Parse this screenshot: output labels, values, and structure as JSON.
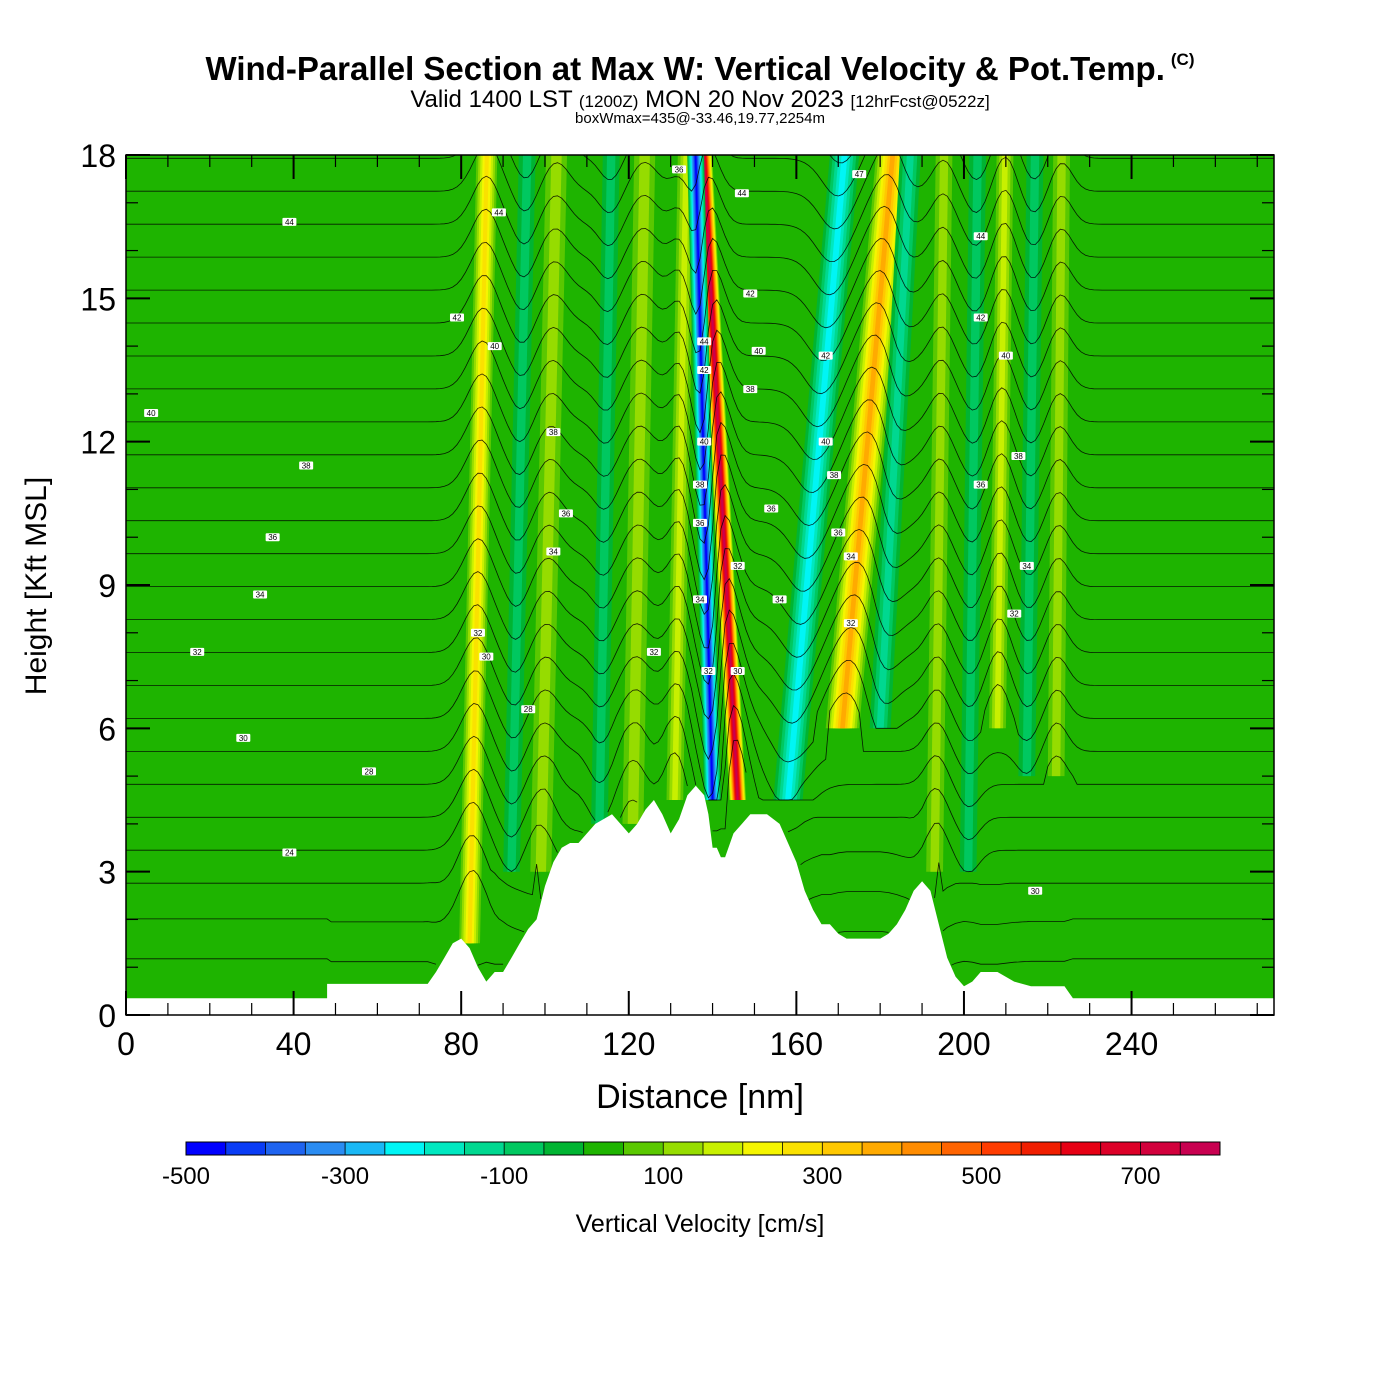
{
  "header": {
    "title": "Wind-Parallel Section at Max W: Vertical Velocity & Pot.Temp.",
    "copyright_mark": "(C)",
    "valid_prefix": "Valid 1400 LST",
    "valid_utc": "(1200Z)",
    "valid_date": "MON 20 Nov 2023",
    "forecast": "[12hrFcst@0522z]",
    "box_wmax": "boxWmax=435@-33.46,19.77,2254m"
  },
  "chart_data": {
    "type": "heatmap",
    "title": "Wind-Parallel Section at Max W: Vertical Velocity & Pot.Temp.",
    "xlabel": "Distance [nm]",
    "ylabel": "Height [Kft MSL]",
    "xlim": [
      0,
      274
    ],
    "ylim": [
      0,
      18
    ],
    "x_ticks": [
      0,
      40,
      80,
      120,
      160,
      200,
      240
    ],
    "y_ticks": [
      0,
      3,
      6,
      9,
      12,
      15,
      18
    ],
    "background_w": 25,
    "colorbar": {
      "label": "Vertical Velocity [cm/s]",
      "min": -500,
      "max": 800,
      "step": 50,
      "tick_labels": [
        -500,
        -300,
        -100,
        100,
        300,
        500,
        700
      ],
      "colors": [
        "#0000ff",
        "#0a3cf5",
        "#1f64f0",
        "#2a8cf2",
        "#1ab8f5",
        "#00f5f5",
        "#00e8c0",
        "#00d890",
        "#00c860",
        "#00b432",
        "#1eb400",
        "#5ac800",
        "#96dc00",
        "#c8f000",
        "#f5f500",
        "#fae100",
        "#ffc800",
        "#ffaa00",
        "#ff8c00",
        "#ff6400",
        "#ff3c00",
        "#f01e00",
        "#e60014",
        "#dc0028",
        "#d2003c",
        "#c80050"
      ]
    },
    "updrafts": [
      {
        "x_base": 82,
        "h_base": 1.5,
        "slope": 0.25,
        "w": 275,
        "width": 5
      },
      {
        "x_base": 99,
        "h_base": 3.0,
        "slope": 0.25,
        "w": 125,
        "width": 5
      },
      {
        "x_base": 121,
        "h_base": 4.0,
        "slope": 0.2,
        "w": 125,
        "width": 5
      },
      {
        "x_base": 131,
        "h_base": 4.5,
        "slope": 0.2,
        "w": 175,
        "width": 4
      },
      {
        "x_base": 146,
        "h_base": 4.5,
        "slope": -0.6,
        "w": 750,
        "width": 4
      },
      {
        "x_base": 171,
        "h_base": 6.0,
        "slope": 1.0,
        "w": 375,
        "width": 8
      },
      {
        "x_base": 193,
        "h_base": 3.0,
        "slope": 0.15,
        "w": 125,
        "width": 4
      },
      {
        "x_base": 208,
        "h_base": 6.0,
        "slope": 0.15,
        "w": 175,
        "width": 4
      },
      {
        "x_base": 222,
        "h_base": 5.0,
        "slope": 0.1,
        "w": 125,
        "width": 4
      }
    ],
    "downdrafts": [
      {
        "x_base": 92,
        "h_base": 3.0,
        "slope": 0.25,
        "w": -75,
        "width": 4
      },
      {
        "x_base": 113,
        "h_base": 4.0,
        "slope": 0.2,
        "w": -75,
        "width": 4
      },
      {
        "x_base": 140,
        "h_base": 4.5,
        "slope": -0.3,
        "w": -475,
        "width": 4
      },
      {
        "x_base": 158,
        "h_base": 4.5,
        "slope": 1.0,
        "w": -225,
        "width": 7
      },
      {
        "x_base": 180,
        "h_base": 6.0,
        "slope": 0.6,
        "w": -125,
        "width": 5
      },
      {
        "x_base": 201,
        "h_base": 3.0,
        "slope": 0.15,
        "w": -75,
        "width": 4
      },
      {
        "x_base": 215,
        "h_base": 5.0,
        "slope": 0.15,
        "w": -75,
        "width": 4
      }
    ],
    "terrain": {
      "x": [
        0,
        48,
        48,
        72,
        74,
        76,
        78,
        80,
        82,
        84,
        86,
        88,
        90,
        92,
        94,
        96,
        98,
        100,
        102,
        104,
        106,
        108,
        112,
        116,
        120,
        122,
        124,
        126,
        128,
        130,
        132,
        134,
        136,
        138,
        139,
        140,
        141,
        142,
        143,
        145,
        147,
        149,
        151,
        153,
        156,
        158,
        160,
        162,
        164,
        166,
        168,
        170,
        172,
        174,
        176,
        178,
        180,
        182,
        184,
        186,
        188,
        190,
        192,
        194,
        196,
        198,
        200,
        202,
        204,
        208,
        212,
        216,
        220,
        224,
        226,
        274
      ],
      "y": [
        0.35,
        0.35,
        0.65,
        0.65,
        0.9,
        1.2,
        1.5,
        1.6,
        1.4,
        1.0,
        0.7,
        0.9,
        0.9,
        1.2,
        1.5,
        1.8,
        2.0,
        2.7,
        3.2,
        3.5,
        3.6,
        3.6,
        4.0,
        4.2,
        3.8,
        4.0,
        4.3,
        4.5,
        4.2,
        3.8,
        4.1,
        4.6,
        4.8,
        4.6,
        4.2,
        3.5,
        3.5,
        3.3,
        3.3,
        3.8,
        4.0,
        4.2,
        4.2,
        4.2,
        4.0,
        3.6,
        3.2,
        2.6,
        2.2,
        1.9,
        1.9,
        1.7,
        1.6,
        1.6,
        1.6,
        1.6,
        1.6,
        1.7,
        1.9,
        2.2,
        2.6,
        2.8,
        2.6,
        1.9,
        1.2,
        0.8,
        0.6,
        0.7,
        0.9,
        0.9,
        0.7,
        0.6,
        0.6,
        0.6,
        0.35,
        0.35
      ]
    },
    "isentropes": {
      "theta_min": 24,
      "theta_max": 52,
      "interval": 1
    },
    "contour_labels": [
      {
        "x": 6,
        "h": 12.6,
        "text": "40"
      },
      {
        "x": 39,
        "h": 16.6,
        "text": "44"
      },
      {
        "x": 43,
        "h": 11.5,
        "text": "38"
      },
      {
        "x": 35,
        "h": 10.0,
        "text": "36"
      },
      {
        "x": 32,
        "h": 8.8,
        "text": "34"
      },
      {
        "x": 17,
        "h": 7.6,
        "text": "32"
      },
      {
        "x": 28,
        "h": 5.8,
        "text": "30"
      },
      {
        "x": 58,
        "h": 5.1,
        "text": "28"
      },
      {
        "x": 39,
        "h": 3.4,
        "text": "24"
      },
      {
        "x": 79,
        "h": 14.6,
        "text": "42"
      },
      {
        "x": 89,
        "h": 16.8,
        "text": "44"
      },
      {
        "x": 88,
        "h": 14.0,
        "text": "40"
      },
      {
        "x": 102,
        "h": 12.2,
        "text": "38"
      },
      {
        "x": 105,
        "h": 10.5,
        "text": "36"
      },
      {
        "x": 102,
        "h": 9.7,
        "text": "34"
      },
      {
        "x": 84,
        "h": 8.0,
        "text": "32"
      },
      {
        "x": 86,
        "h": 7.5,
        "text": "30"
      },
      {
        "x": 96,
        "h": 6.4,
        "text": "28"
      },
      {
        "x": 126,
        "h": 7.6,
        "text": "32"
      },
      {
        "x": 132,
        "h": 17.7,
        "text": "36"
      },
      {
        "x": 138,
        "h": 14.1,
        "text": "44"
      },
      {
        "x": 138,
        "h": 13.5,
        "text": "42"
      },
      {
        "x": 138,
        "h": 12.0,
        "text": "40"
      },
      {
        "x": 137,
        "h": 11.1,
        "text": "38"
      },
      {
        "x": 137,
        "h": 10.3,
        "text": "36"
      },
      {
        "x": 137,
        "h": 8.7,
        "text": "34"
      },
      {
        "x": 139,
        "h": 7.2,
        "text": "32"
      },
      {
        "x": 147,
        "h": 17.2,
        "text": "44"
      },
      {
        "x": 149,
        "h": 15.1,
        "text": "42"
      },
      {
        "x": 151,
        "h": 13.9,
        "text": "40"
      },
      {
        "x": 149,
        "h": 13.1,
        "text": "38"
      },
      {
        "x": 154,
        "h": 10.6,
        "text": "36"
      },
      {
        "x": 146,
        "h": 9.4,
        "text": "32"
      },
      {
        "x": 146,
        "h": 7.2,
        "text": "30"
      },
      {
        "x": 156,
        "h": 8.7,
        "text": "34"
      },
      {
        "x": 167,
        "h": 13.8,
        "text": "42"
      },
      {
        "x": 167,
        "h": 12.0,
        "text": "40"
      },
      {
        "x": 169,
        "h": 11.3,
        "text": "38"
      },
      {
        "x": 170,
        "h": 10.1,
        "text": "36"
      },
      {
        "x": 173,
        "h": 9.6,
        "text": "34"
      },
      {
        "x": 173,
        "h": 8.2,
        "text": "32"
      },
      {
        "x": 175,
        "h": 17.6,
        "text": "47"
      },
      {
        "x": 204,
        "h": 16.3,
        "text": "44"
      },
      {
        "x": 204,
        "h": 14.6,
        "text": "42"
      },
      {
        "x": 210,
        "h": 13.8,
        "text": "40"
      },
      {
        "x": 213,
        "h": 11.7,
        "text": "38"
      },
      {
        "x": 204,
        "h": 11.1,
        "text": "36"
      },
      {
        "x": 215,
        "h": 9.4,
        "text": "34"
      },
      {
        "x": 212,
        "h": 8.4,
        "text": "32"
      },
      {
        "x": 217,
        "h": 2.6,
        "text": "30"
      }
    ]
  }
}
